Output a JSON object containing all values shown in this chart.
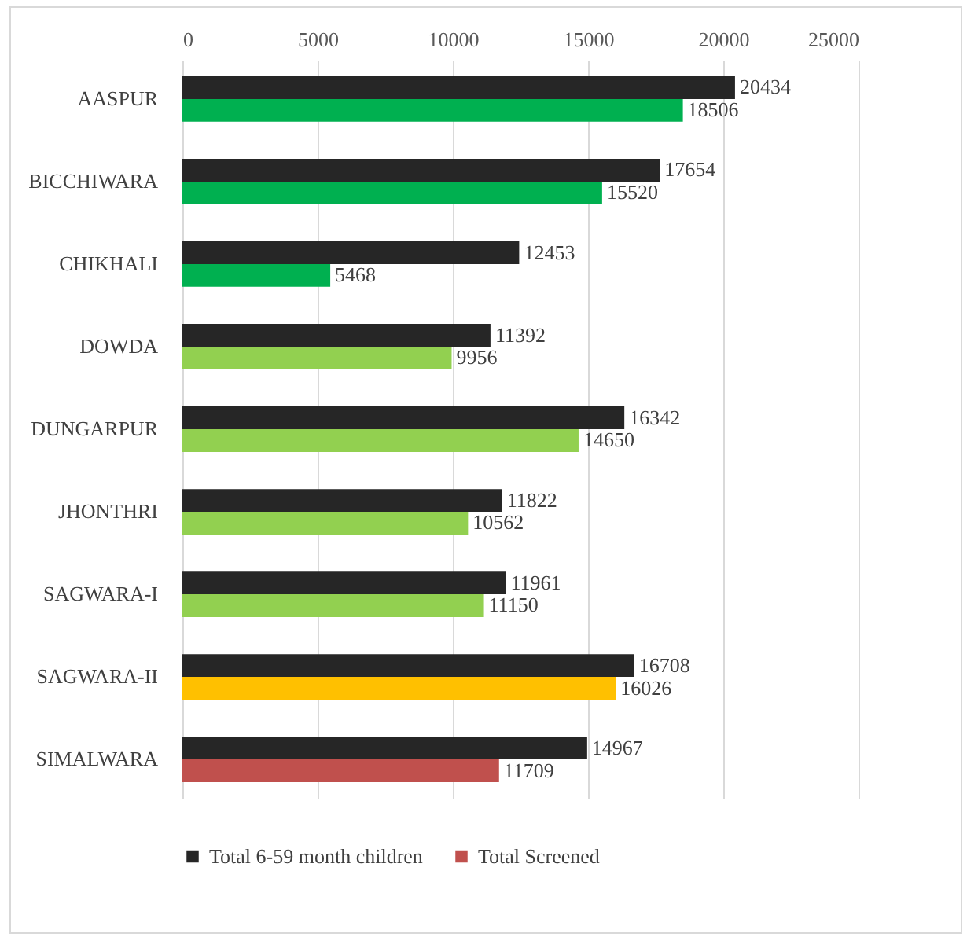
{
  "chart_data": {
    "type": "bar",
    "orientation": "horizontal",
    "categories": [
      "AASPUR",
      "BICCHIWARA",
      "CHIKHALI",
      "DOWDA",
      "DUNGARPUR",
      "JHONTHRI",
      "SAGWARA-I",
      "SAGWARA-II",
      "SIMALWARA"
    ],
    "series": [
      {
        "name": "Total 6-59 month children",
        "color": "#262626",
        "values": [
          20434,
          17654,
          12453,
          11392,
          16342,
          11822,
          11961,
          16708,
          14967
        ]
      },
      {
        "name": "Total Screened",
        "color": "#c0504d",
        "colors": [
          "#00b050",
          "#00b050",
          "#00b050",
          "#92d050",
          "#92d050",
          "#92d050",
          "#92d050",
          "#ffc000",
          "#c0504d"
        ],
        "values": [
          18506,
          15520,
          5468,
          9956,
          14650,
          10562,
          11150,
          16026,
          11709
        ]
      }
    ],
    "xlim": [
      0,
      25000
    ],
    "xticks": [
      0,
      5000,
      10000,
      15000,
      20000,
      25000
    ],
    "grid": "x",
    "legend": "bottom",
    "data_labels": true
  }
}
